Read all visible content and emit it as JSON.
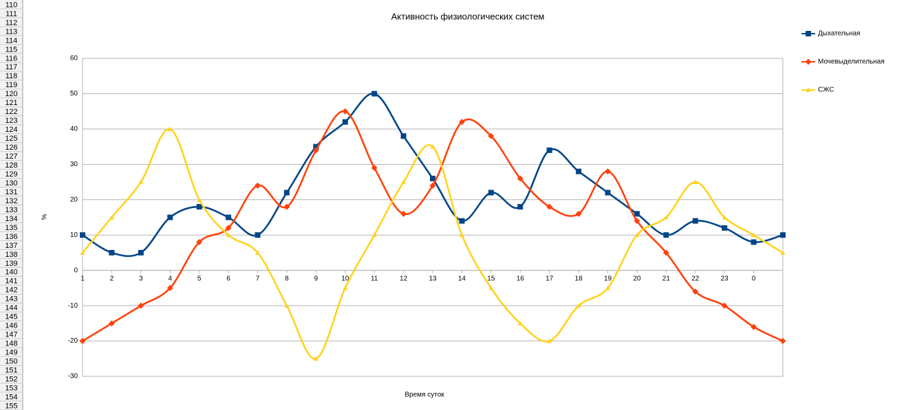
{
  "row_headers": [
    110,
    111,
    112,
    113,
    114,
    115,
    116,
    117,
    118,
    119,
    120,
    121,
    122,
    123,
    124,
    125,
    126,
    127,
    128,
    129,
    130,
    131,
    132,
    133,
    134,
    135,
    136,
    137,
    138,
    139,
    140,
    141,
    142,
    143,
    144,
    145,
    146,
    147,
    148,
    149,
    150,
    151,
    152,
    153,
    154,
    155
  ],
  "chart_data": {
    "type": "line",
    "smooth": true,
    "title": "Активность физиологических систем",
    "x_label": "Время суток",
    "y_label": "%",
    "categories": [
      "1",
      "2",
      "3",
      "4",
      "5",
      "6",
      "7",
      "8",
      "9",
      "10",
      "11",
      "12",
      "13",
      "14",
      "15",
      "16",
      "17",
      "18",
      "19",
      "20",
      "21",
      "22",
      "23",
      "0",
      null
    ],
    "series": [
      {
        "name": "Дыхательная",
        "color": "#004586",
        "marker": "square",
        "values": [
          10,
          5,
          5,
          15,
          18,
          15,
          10,
          22,
          35,
          42,
          50,
          38,
          26,
          14,
          22,
          18,
          34,
          28,
          22,
          16,
          10,
          14,
          12,
          8,
          10
        ]
      },
      {
        "name": "Мочевыделительная",
        "color": "#ff420e",
        "marker": "diamond",
        "values": [
          -20,
          -15,
          -10,
          -5,
          8,
          12,
          24,
          18,
          34,
          45,
          29,
          16,
          24,
          42,
          38,
          26,
          18,
          16,
          28,
          14,
          5,
          -6,
          -10,
          -16,
          -20
        ]
      },
      {
        "name": "СЖС",
        "color": "#ffd320",
        "marker": "triangle",
        "values": [
          5,
          15,
          25,
          40,
          20,
          10,
          5,
          -10,
          -25,
          -5,
          10,
          25,
          35,
          10,
          -5,
          -15,
          -20,
          -10,
          -5,
          10,
          15,
          25,
          15,
          10,
          5
        ]
      }
    ],
    "ylim": [
      -30,
      60
    ],
    "yticks": [
      -30,
      -20,
      -10,
      0,
      10,
      20,
      30,
      40,
      50,
      60
    ],
    "grid": true,
    "legend": "right"
  }
}
